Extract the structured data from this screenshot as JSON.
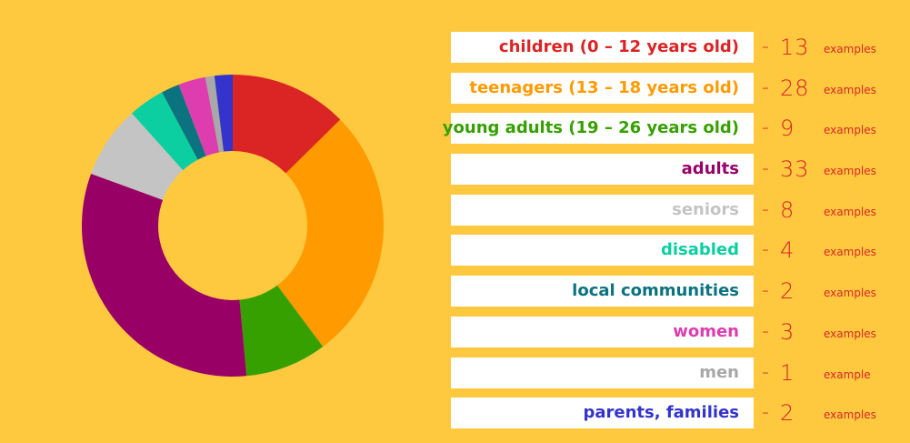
{
  "chart_data": {
    "type": "pie",
    "series": [
      {
        "label": "children (0 – 12 years old)",
        "value": 13,
        "color": "#DB2424",
        "unit": "examples"
      },
      {
        "label": "teenagers (13 – 18 years old)",
        "value": 28,
        "color": "#FF9A00",
        "unit": "examples"
      },
      {
        "label": "young adults (19 – 26 years old)",
        "value": 9,
        "color": "#36A000",
        "unit": "examples"
      },
      {
        "label": "adults",
        "value": 33,
        "color": "#990066",
        "unit": "examples"
      },
      {
        "label": "seniors",
        "value": 8,
        "color": "#C4C4C4",
        "unit": "examples"
      },
      {
        "label": "disabled",
        "value": 4,
        "color": "#0BCFA0",
        "unit": "examples"
      },
      {
        "label": "local communities",
        "value": 2,
        "color": "#0B7380",
        "unit": "examples"
      },
      {
        "label": "women",
        "value": 3,
        "color": "#DD3DAE",
        "unit": "examples"
      },
      {
        "label": "men",
        "value": 1,
        "color": "#A8A8A8",
        "unit": "example"
      },
      {
        "label": "parents, families",
        "value": 2,
        "color": "#3434CC",
        "unit": "examples"
      }
    ],
    "center_color": "#FFC93F"
  }
}
